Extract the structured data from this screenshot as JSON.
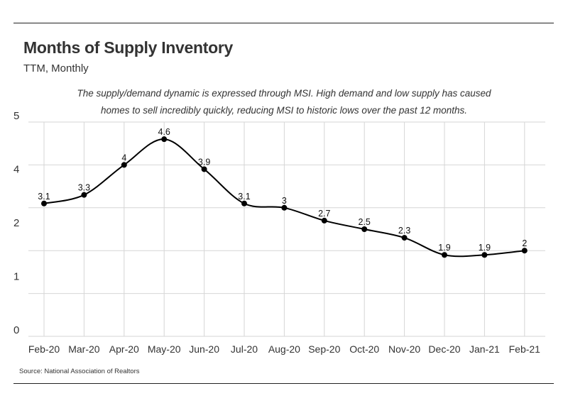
{
  "header": {
    "title": "Months of Supply Inventory",
    "subtitle": "TTM, Monthly"
  },
  "annotation": {
    "line1": "The supply/demand dynamic is expressed through MSI. High demand and low supply has caused",
    "line2": "homes to sell incredibly quickly, reducing MSI to historic lows over the past 12 months."
  },
  "source": "Source:  National Association of Realtors",
  "chart_data": {
    "type": "line",
    "title": "Months of Supply Inventory",
    "subtitle": "TTM, Monthly",
    "categories": [
      "Feb-20",
      "Mar-20",
      "Apr-20",
      "May-20",
      "Jun-20",
      "Jul-20",
      "Aug-20",
      "Sep-20",
      "Oct-20",
      "Nov-20",
      "Dec-20",
      "Jan-21",
      "Feb-21"
    ],
    "values": [
      3.1,
      3.3,
      4,
      4.6,
      3.9,
      3.1,
      3,
      2.7,
      2.5,
      2.3,
      1.9,
      1.9,
      2
    ],
    "data_labels": [
      "3.1",
      "3.3",
      "4",
      "4.6",
      "3.9",
      "3.1",
      "3",
      "2.7",
      "2.5",
      "2.3",
      "1.9",
      "1.9",
      "2"
    ],
    "y_tick_labels": [
      "0",
      "1",
      "2",
      "4",
      "5"
    ],
    "ylim": [
      0,
      5
    ],
    "xlabel": "",
    "ylabel": "",
    "grid": true,
    "line_color": "#000000",
    "gridline_color": "#d6d6d6"
  }
}
